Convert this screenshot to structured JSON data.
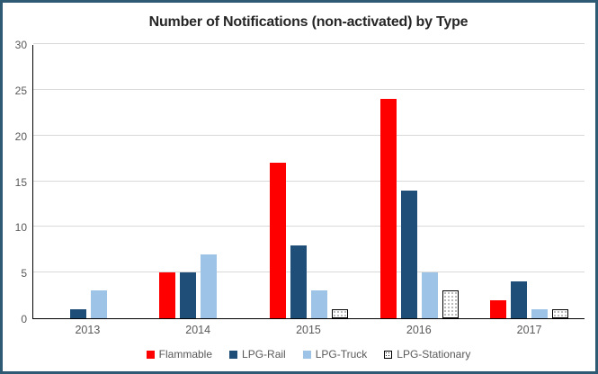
{
  "chart_data": {
    "type": "bar",
    "title": "Number of Notifications (non-activated) by Type",
    "categories": [
      "2013",
      "2014",
      "2015",
      "2016",
      "2017"
    ],
    "series": [
      {
        "name": "Flammable",
        "color": "#FF0000",
        "pattern": "solid",
        "values": [
          0,
          5,
          17,
          24,
          2
        ]
      },
      {
        "name": "LPG-Rail",
        "color": "#1F4E79",
        "pattern": "solid",
        "values": [
          1,
          5,
          8,
          14,
          4
        ]
      },
      {
        "name": "LPG-Truck",
        "color": "#9DC3E6",
        "pattern": "solid",
        "values": [
          3,
          7,
          3,
          5,
          1
        ]
      },
      {
        "name": "LPG-Stationary",
        "color": "#FFFFFF",
        "pattern": "dots",
        "values": [
          0,
          0,
          1,
          3,
          1
        ]
      }
    ],
    "xlabel": "",
    "ylabel": "",
    "ylim": [
      0,
      30
    ],
    "ytick_step": 5,
    "grid": true,
    "legend_position": "bottom"
  },
  "styles": {
    "window_border_color": "#2E5A73",
    "grid_color": "#D9D9D9",
    "axis_color": "#000000",
    "tick_label_color": "#595959",
    "title_color": "#262626",
    "legend_text_color": "#595959"
  }
}
